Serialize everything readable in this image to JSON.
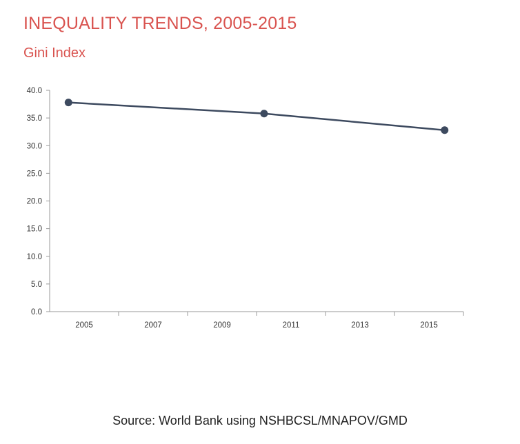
{
  "header": {
    "title": "INEQUALITY TRENDS, 2005-2015",
    "subtitle": "Gini Index"
  },
  "footer": {
    "source": "Source: World Bank using NSHBCSL/MNAPOV/GMD"
  },
  "colors": {
    "title": "#d9534f",
    "series": "#3d4a5f",
    "axis": "#999999"
  },
  "chart_data": {
    "type": "line",
    "title": "",
    "xlabel": "",
    "ylabel": "",
    "x_ticks": [
      "2005",
      "2007",
      "2009",
      "2011",
      "2013",
      "2015"
    ],
    "y_ticks": [
      "0.0",
      "5.0",
      "10.0",
      "15.0",
      "20.0",
      "25.0",
      "30.0",
      "35.0",
      "40.0"
    ],
    "ylim": [
      0,
      40
    ],
    "xlim": [
      2004.5,
      2015.5
    ],
    "grid": false,
    "legend": "none",
    "series": [
      {
        "x": [
          2005,
          2010.2,
          2015
        ],
        "values": [
          37.8,
          35.8,
          32.8
        ]
      }
    ]
  }
}
